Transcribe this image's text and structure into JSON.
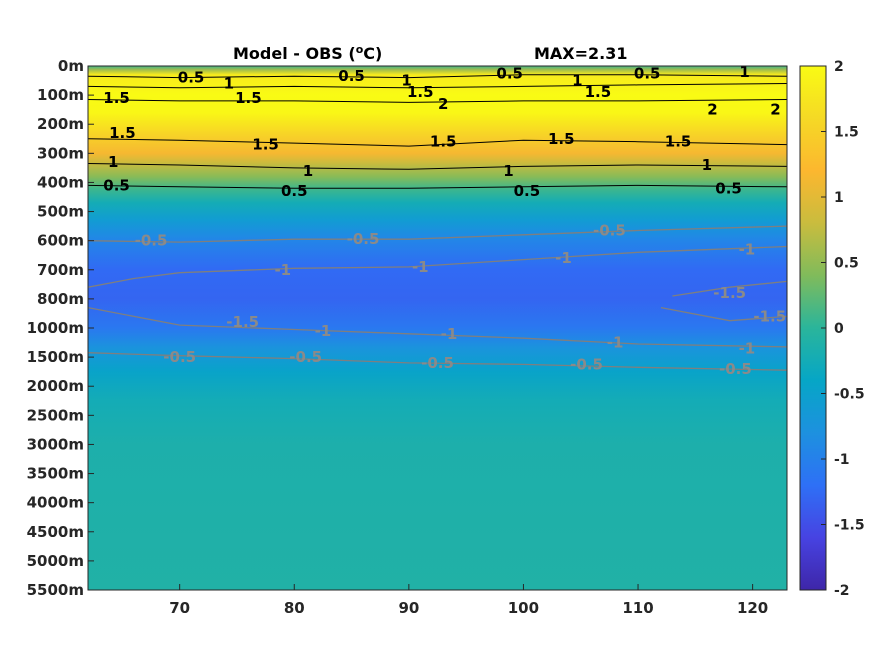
{
  "chart_data": {
    "type": "heatmap",
    "title_left": "Model - OBS (",
    "title_unit_sup": "o",
    "title_unit_rest": "C)",
    "title_right": "MAX=2.31",
    "x_ticks": [
      70,
      80,
      90,
      100,
      110,
      120
    ],
    "xlim": [
      62,
      123
    ],
    "y_labels": [
      "0m",
      "100m",
      "200m",
      "300m",
      "400m",
      "500m",
      "600m",
      "700m",
      "800m",
      "1000m",
      "1500m",
      "2000m",
      "2500m",
      "3000m",
      "3500m",
      "4000m",
      "4500m",
      "5000m",
      "5500m"
    ],
    "colorbar": {
      "min": -2,
      "max": 2,
      "ticks": [
        2,
        1.5,
        1,
        0.5,
        0,
        -0.5,
        -1,
        -1.5,
        -2
      ],
      "colormap": "parula",
      "stops": [
        "#3e26a8",
        "#4743e2",
        "#2e70f6",
        "#1d91df",
        "#06a6c6",
        "#2ab59b",
        "#80bb5b",
        "#c9bc3e",
        "#fcb72f",
        "#f5d925",
        "#f9fb14"
      ]
    },
    "depth_profile": [
      {
        "depth_index": 0.0,
        "value": 0.1
      },
      {
        "depth_index": 0.12,
        "value": 0.55
      },
      {
        "depth_index": 0.3,
        "value": 1.8
      },
      {
        "depth_index": 1.0,
        "value": 2.05
      },
      {
        "depth_index": 1.6,
        "value": 1.95
      },
      {
        "depth_index": 2.4,
        "value": 1.5
      },
      {
        "depth_index": 3.0,
        "value": 1.15
      },
      {
        "depth_index": 3.3,
        "value": 0.85
      },
      {
        "depth_index": 3.8,
        "value": 0.45
      },
      {
        "depth_index": 4.2,
        "value": 0.1
      },
      {
        "depth_index": 4.7,
        "value": -0.25
      },
      {
        "depth_index": 5.3,
        "value": -0.6
      },
      {
        "depth_index": 6.0,
        "value": -0.95
      },
      {
        "depth_index": 7.0,
        "value": -1.25
      },
      {
        "depth_index": 8.0,
        "value": -1.3
      },
      {
        "depth_index": 9.0,
        "value": -1.1
      },
      {
        "depth_index": 9.7,
        "value": -0.75
      },
      {
        "depth_index": 10.5,
        "value": -0.45
      },
      {
        "depth_index": 11.5,
        "value": -0.25
      },
      {
        "depth_index": 13.0,
        "value": -0.15
      },
      {
        "depth_index": 18.0,
        "value": -0.1
      }
    ],
    "contour_labels": [
      {
        "text": "0.5",
        "x": 71.0,
        "depth_index": 0.4,
        "color": "black"
      },
      {
        "text": "1",
        "x": 74.3,
        "depth_index": 0.6,
        "color": "black"
      },
      {
        "text": "1.5",
        "x": 64.5,
        "depth_index": 1.1,
        "color": "black"
      },
      {
        "text": "1.5",
        "x": 76.0,
        "depth_index": 1.1,
        "color": "black"
      },
      {
        "text": "0.5",
        "x": 85.0,
        "depth_index": 0.35,
        "color": "black"
      },
      {
        "text": "1",
        "x": 89.8,
        "depth_index": 0.5,
        "color": "black"
      },
      {
        "text": "1.5",
        "x": 91.0,
        "depth_index": 0.9,
        "color": "black"
      },
      {
        "text": "2",
        "x": 93.0,
        "depth_index": 1.3,
        "color": "black"
      },
      {
        "text": "0.5",
        "x": 98.8,
        "depth_index": 0.25,
        "color": "black"
      },
      {
        "text": "1",
        "x": 104.7,
        "depth_index": 0.5,
        "color": "black"
      },
      {
        "text": "1.5",
        "x": 106.5,
        "depth_index": 0.9,
        "color": "black"
      },
      {
        "text": "0.5",
        "x": 110.8,
        "depth_index": 0.25,
        "color": "black"
      },
      {
        "text": "1",
        "x": 119.3,
        "depth_index": 0.2,
        "color": "black"
      },
      {
        "text": "2",
        "x": 116.5,
        "depth_index": 1.5,
        "color": "black"
      },
      {
        "text": "2",
        "x": 122.0,
        "depth_index": 1.5,
        "color": "black"
      },
      {
        "text": "1.5",
        "x": 65.0,
        "depth_index": 2.3,
        "color": "black"
      },
      {
        "text": "1.5",
        "x": 77.5,
        "depth_index": 2.7,
        "color": "black"
      },
      {
        "text": "1.5",
        "x": 93.0,
        "depth_index": 2.6,
        "color": "black"
      },
      {
        "text": "1.5",
        "x": 103.3,
        "depth_index": 2.5,
        "color": "black"
      },
      {
        "text": "1.5",
        "x": 113.5,
        "depth_index": 2.6,
        "color": "black"
      },
      {
        "text": "1",
        "x": 64.2,
        "depth_index": 3.3,
        "color": "black"
      },
      {
        "text": "1",
        "x": 81.2,
        "depth_index": 3.6,
        "color": "black"
      },
      {
        "text": "1",
        "x": 98.7,
        "depth_index": 3.6,
        "color": "black"
      },
      {
        "text": "1",
        "x": 116.0,
        "depth_index": 3.4,
        "color": "black"
      },
      {
        "text": "0.5",
        "x": 64.5,
        "depth_index": 4.1,
        "color": "black"
      },
      {
        "text": "0.5",
        "x": 80.0,
        "depth_index": 4.3,
        "color": "black"
      },
      {
        "text": "0.5",
        "x": 100.3,
        "depth_index": 4.3,
        "color": "black"
      },
      {
        "text": "0.5",
        "x": 117.9,
        "depth_index": 4.2,
        "color": "black"
      },
      {
        "text": "-0.5",
        "x": 67.5,
        "depth_index": 6.0,
        "color": "gray"
      },
      {
        "text": "-0.5",
        "x": 86.0,
        "depth_index": 5.95,
        "color": "gray"
      },
      {
        "text": "-0.5",
        "x": 107.5,
        "depth_index": 5.65,
        "color": "gray"
      },
      {
        "text": "-1",
        "x": 79.0,
        "depth_index": 7.0,
        "color": "gray"
      },
      {
        "text": "-1",
        "x": 91.0,
        "depth_index": 6.9,
        "color": "gray"
      },
      {
        "text": "-1",
        "x": 103.5,
        "depth_index": 6.6,
        "color": "gray"
      },
      {
        "text": "-1",
        "x": 119.5,
        "depth_index": 6.3,
        "color": "gray"
      },
      {
        "text": "-1.5",
        "x": 118.0,
        "depth_index": 7.8,
        "color": "gray"
      },
      {
        "text": "-1.5",
        "x": 121.5,
        "depth_index": 8.6,
        "color": "gray"
      },
      {
        "text": "-1.5",
        "x": 75.5,
        "depth_index": 8.8,
        "color": "gray"
      },
      {
        "text": "-1",
        "x": 82.5,
        "depth_index": 9.1,
        "color": "gray"
      },
      {
        "text": "-1",
        "x": 93.5,
        "depth_index": 9.2,
        "color": "gray"
      },
      {
        "text": "-1",
        "x": 108.0,
        "depth_index": 9.5,
        "color": "gray"
      },
      {
        "text": "-1",
        "x": 119.5,
        "depth_index": 9.7,
        "color": "gray"
      },
      {
        "text": "-0.5",
        "x": 70.0,
        "depth_index": 10.0,
        "color": "gray"
      },
      {
        "text": "-0.5",
        "x": 81.0,
        "depth_index": 10.0,
        "color": "gray"
      },
      {
        "text": "-0.5",
        "x": 92.5,
        "depth_index": 10.2,
        "color": "gray"
      },
      {
        "text": "-0.5",
        "x": 105.5,
        "depth_index": 10.25,
        "color": "gray"
      },
      {
        "text": "-0.5",
        "x": 118.5,
        "depth_index": 10.4,
        "color": "gray"
      }
    ],
    "contour_lines": [
      {
        "color": "black",
        "points": [
          [
            62,
            0.35
          ],
          [
            70,
            0.4
          ],
          [
            80,
            0.35
          ],
          [
            90,
            0.4
          ],
          [
            100,
            0.3
          ],
          [
            110,
            0.3
          ],
          [
            123,
            0.35
          ]
        ]
      },
      {
        "color": "black",
        "points": [
          [
            62,
            0.7
          ],
          [
            70,
            0.75
          ],
          [
            80,
            0.7
          ],
          [
            90,
            0.75
          ],
          [
            100,
            0.7
          ],
          [
            110,
            0.65
          ],
          [
            123,
            0.6
          ]
        ]
      },
      {
        "color": "black",
        "points": [
          [
            62,
            1.15
          ],
          [
            70,
            1.2
          ],
          [
            80,
            1.2
          ],
          [
            90,
            1.25
          ],
          [
            100,
            1.2
          ],
          [
            110,
            1.2
          ],
          [
            123,
            1.15
          ]
        ]
      },
      {
        "color": "black",
        "points": [
          [
            62,
            2.5
          ],
          [
            70,
            2.55
          ],
          [
            80,
            2.65
          ],
          [
            90,
            2.75
          ],
          [
            100,
            2.55
          ],
          [
            110,
            2.6
          ],
          [
            123,
            2.7
          ]
        ]
      },
      {
        "color": "black",
        "points": [
          [
            62,
            3.35
          ],
          [
            70,
            3.4
          ],
          [
            80,
            3.5
          ],
          [
            90,
            3.55
          ],
          [
            100,
            3.45
          ],
          [
            110,
            3.4
          ],
          [
            123,
            3.45
          ]
        ]
      },
      {
        "color": "black",
        "points": [
          [
            62,
            4.1
          ],
          [
            70,
            4.15
          ],
          [
            80,
            4.2
          ],
          [
            90,
            4.2
          ],
          [
            100,
            4.15
          ],
          [
            110,
            4.1
          ],
          [
            123,
            4.15
          ]
        ]
      },
      {
        "color": "gray",
        "points": [
          [
            62,
            6.0
          ],
          [
            70,
            6.05
          ],
          [
            80,
            5.95
          ],
          [
            90,
            5.95
          ],
          [
            100,
            5.8
          ],
          [
            110,
            5.65
          ],
          [
            123,
            5.5
          ]
        ]
      },
      {
        "color": "gray",
        "points": [
          [
            62,
            7.6
          ],
          [
            66,
            7.3
          ],
          [
            70,
            7.1
          ],
          [
            80,
            6.95
          ],
          [
            90,
            6.9
          ],
          [
            100,
            6.65
          ],
          [
            110,
            6.4
          ],
          [
            123,
            6.2
          ]
        ]
      },
      {
        "color": "gray",
        "points": [
          [
            62,
            8.3
          ],
          [
            70,
            8.9
          ],
          [
            80,
            9.05
          ],
          [
            90,
            9.2
          ],
          [
            100,
            9.35
          ],
          [
            110,
            9.55
          ],
          [
            123,
            9.65
          ]
        ]
      },
      {
        "color": "gray",
        "points": [
          [
            62,
            9.85
          ],
          [
            70,
            9.95
          ],
          [
            80,
            10.05
          ],
          [
            90,
            10.2
          ],
          [
            100,
            10.25
          ],
          [
            110,
            10.35
          ],
          [
            123,
            10.45
          ]
        ]
      },
      {
        "color": "gray",
        "points": [
          [
            113,
            7.9
          ],
          [
            118,
            7.6
          ],
          [
            123,
            7.4
          ]
        ]
      },
      {
        "color": "gray",
        "points": [
          [
            112,
            8.3
          ],
          [
            118,
            8.75
          ],
          [
            123,
            8.6
          ]
        ]
      }
    ]
  }
}
